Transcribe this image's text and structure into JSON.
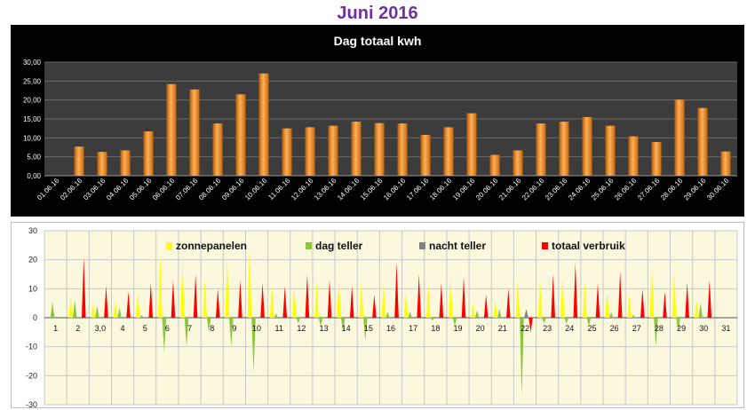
{
  "page": {
    "title": "Juni 2016"
  },
  "chart_data": [
    {
      "type": "bar",
      "title": "Dag totaal kwh",
      "xlabel": "",
      "ylabel": "",
      "ylim": [
        0,
        30
      ],
      "yticks": [
        "0,00",
        "5,00",
        "10,00",
        "15,00",
        "20,00",
        "25,00",
        "30,00"
      ],
      "grid": true,
      "colors": {
        "bar": "#f28a1e",
        "background": "#000000",
        "plot": "#3c3c3c",
        "text": "#ffffff"
      },
      "categories": [
        "01.06.16",
        "02.06.16",
        "03.06.16",
        "04.06.16",
        "05.06.16",
        "06.06.16",
        "07.06.16",
        "08.06.16",
        "09.06.16",
        "10.06.16",
        "11.06.16",
        "12.06.16",
        "13.06.16",
        "14.06.16",
        "15.06.16",
        "16.06.16",
        "17.06.16",
        "18.06.16",
        "19.06.16",
        "20.06.16",
        "21.06.16",
        "22.06.16",
        "23.06.16",
        "24.06.16",
        "25.06.16",
        "26.06.16",
        "27.06.16",
        "28.06.16",
        "29.06.16",
        "30.06.16"
      ],
      "values": [
        null,
        7.7,
        6.3,
        6.7,
        11.7,
        24.2,
        22.8,
        13.8,
        21.5,
        27.0,
        12.5,
        12.8,
        13.2,
        14.3,
        13.9,
        13.8,
        10.8,
        12.8,
        16.5,
        5.5,
        6.7,
        13.8,
        14.3,
        15.5,
        13.2,
        10.4,
        8.9,
        20.1,
        17.9,
        6.4
      ]
    },
    {
      "type": "area",
      "title": "",
      "xlabel": "",
      "ylabel": "",
      "ylim": [
        -30,
        30
      ],
      "yticks": [
        "-30",
        "-20",
        "-10",
        "0",
        "10",
        "20",
        "30"
      ],
      "grid": true,
      "legend_position": "top",
      "categories": [
        "1",
        "2",
        "3,0",
        "4",
        "5",
        "6",
        "7",
        "8",
        "9",
        "10",
        "11",
        "12",
        "13",
        "14",
        "15",
        "16",
        "17",
        "18",
        "19",
        "20",
        "21",
        "22",
        "23",
        "24",
        "25",
        "26",
        "27",
        "28",
        "29",
        "30",
        "31"
      ],
      "series": [
        {
          "name": "zonnepanelen",
          "color": "#ffff00",
          "values": [
            0,
            7,
            5,
            6,
            9,
            22,
            20,
            13,
            20,
            24,
            11,
            11,
            12,
            13,
            12,
            12,
            9,
            11,
            14,
            5,
            6,
            13,
            13,
            14,
            12,
            9,
            8,
            17,
            16,
            6,
            0
          ]
        },
        {
          "name": "dag teller",
          "color": "#8cc63f",
          "values": [
            5.5,
            6,
            4,
            3.5,
            1,
            -12,
            -10,
            -5,
            -10,
            -19,
            1.5,
            -2,
            -3,
            -5,
            -8,
            2,
            2,
            -1,
            -3,
            2.5,
            3,
            -27,
            -2,
            -2,
            -3,
            2,
            1,
            -10,
            -5,
            5,
            0
          ]
        },
        {
          "name": "nacht teller",
          "color": "#808080",
          "values": [
            0,
            0,
            0,
            0,
            0,
            0,
            0,
            0,
            0,
            0,
            0,
            0,
            0,
            0,
            0,
            0,
            0,
            0,
            0,
            0,
            0,
            3,
            0,
            0,
            0,
            0,
            0,
            0,
            0,
            0,
            0
          ]
        },
        {
          "name": "totaal verbruik",
          "color": "#ff0000",
          "values": [
            0,
            21,
            11,
            9,
            12,
            13,
            15,
            10,
            13,
            12,
            11,
            15,
            13,
            11,
            8,
            19,
            15,
            12,
            14,
            8,
            10,
            -5,
            15,
            19,
            12,
            16,
            10,
            9,
            12,
            13,
            0
          ]
        }
      ]
    }
  ]
}
